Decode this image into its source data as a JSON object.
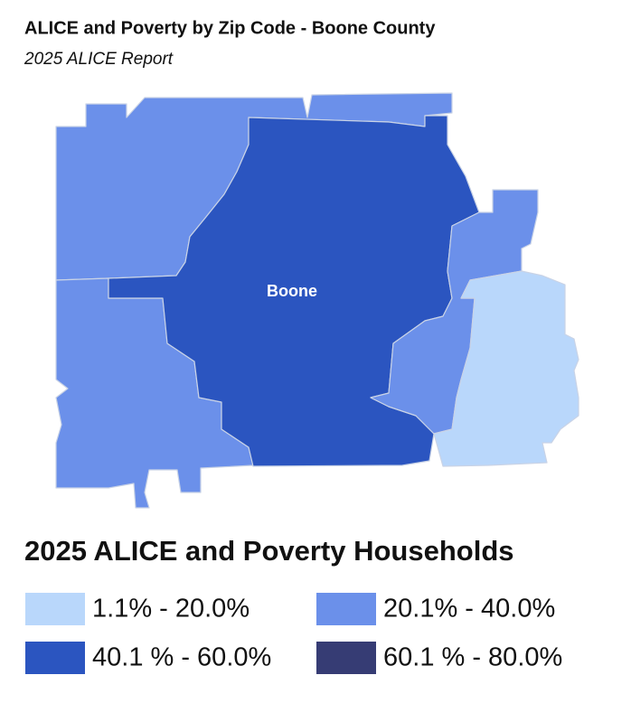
{
  "header": {
    "title": "ALICE and Poverty by Zip Code - Boone County",
    "subtitle": "2025 ALICE Report"
  },
  "map": {
    "label": "Boone"
  },
  "legend": {
    "title": "2025 ALICE and Poverty Households",
    "items": [
      {
        "label": "1.1% - 20.0%",
        "color": "#b9d7fb"
      },
      {
        "label": "20.1% - 40.0%",
        "color": "#6b90ea"
      },
      {
        "label": "40.1 % - 60.0%",
        "color": "#2b55c0"
      },
      {
        "label": "60.1 % - 80.0%",
        "color": "#363c74"
      }
    ]
  }
}
